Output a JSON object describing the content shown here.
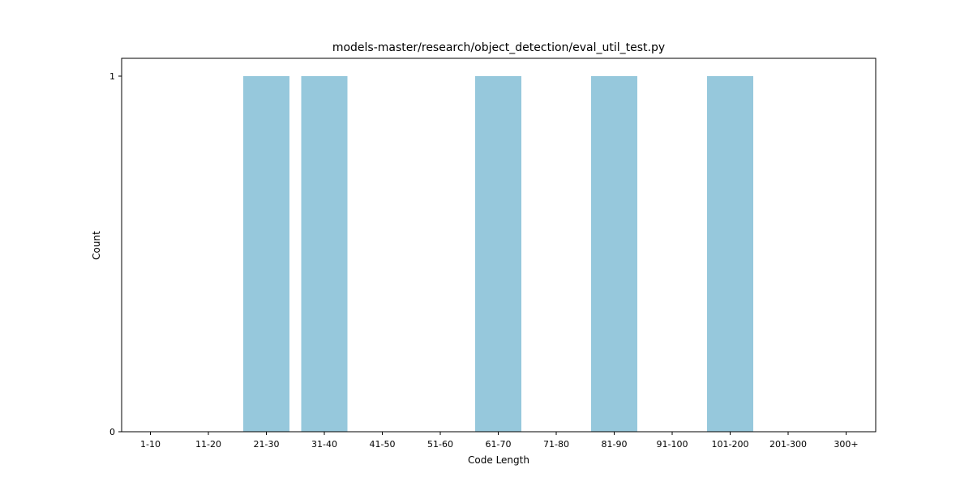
{
  "chart_data": {
    "type": "bar",
    "title": "models-master/research/object_detection/eval_util_test.py",
    "xlabel": "Code Length",
    "ylabel": "Count",
    "categories": [
      "1-10",
      "11-20",
      "21-30",
      "31-40",
      "41-50",
      "51-60",
      "61-70",
      "71-80",
      "81-90",
      "91-100",
      "101-200",
      "201-300",
      "300+"
    ],
    "values": [
      0,
      0,
      1,
      1,
      0,
      0,
      1,
      0,
      1,
      0,
      1,
      0,
      0
    ],
    "ylim": [
      0,
      1
    ],
    "yticks": [
      0,
      1
    ],
    "bar_color": "#96c8dc",
    "grid": false,
    "legend": "none"
  }
}
